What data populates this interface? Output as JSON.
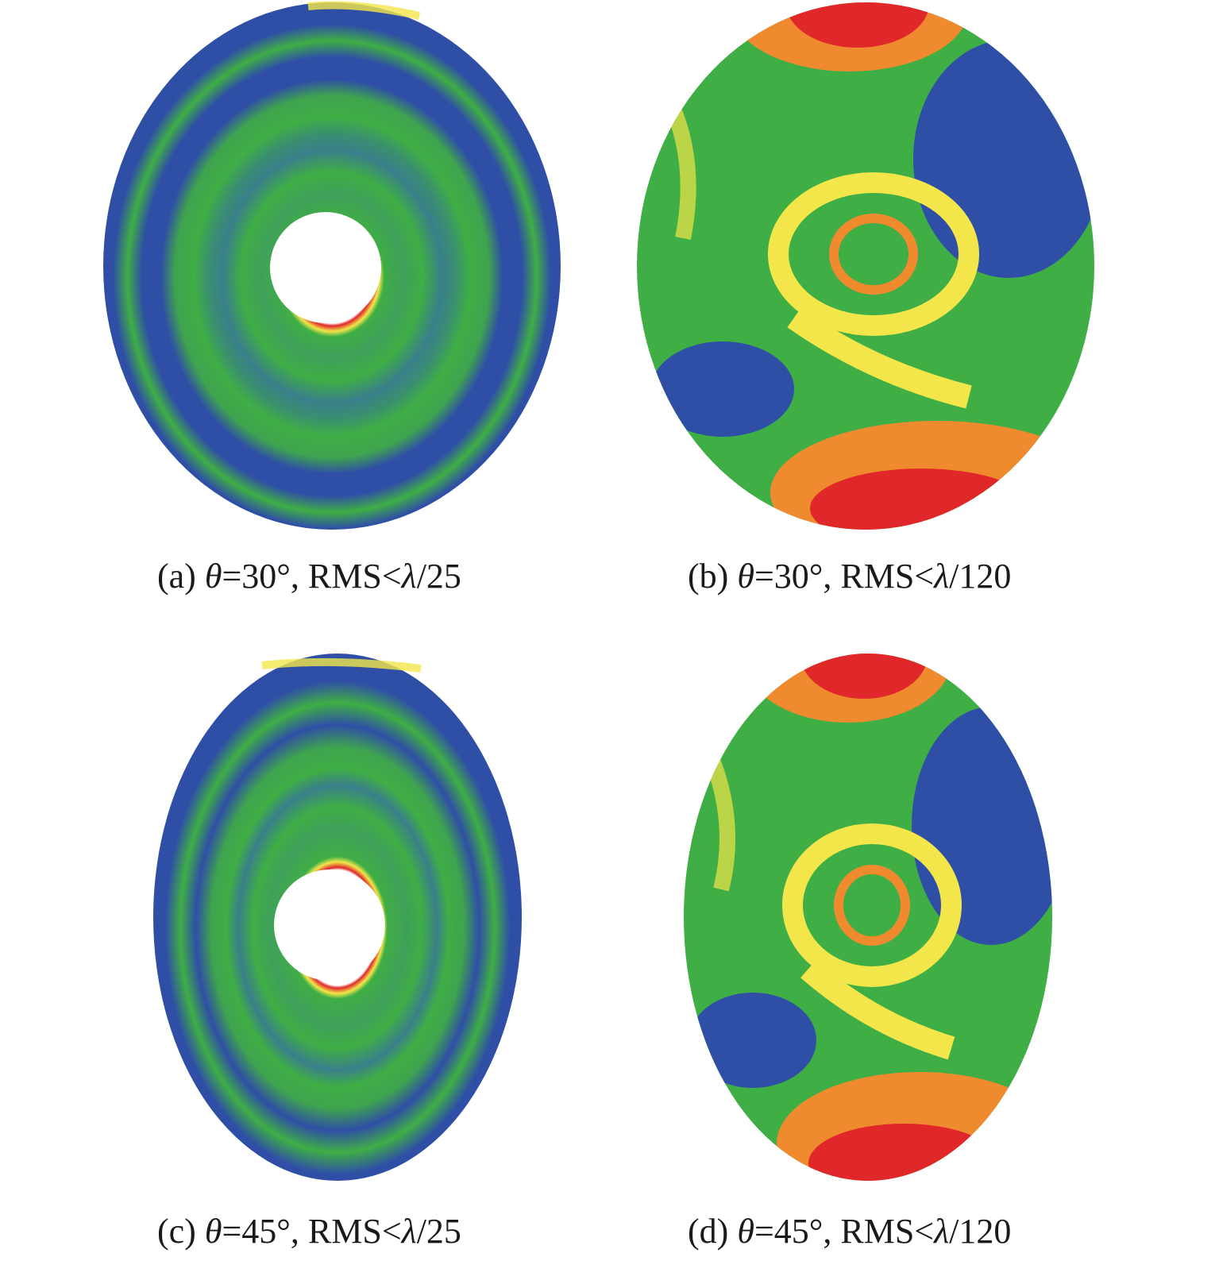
{
  "figure": {
    "colors": {
      "blue": "#2f4fa6",
      "green": "#3fae45",
      "yellow": "#f2e64a",
      "orange": "#f08a2e",
      "red": "#e0282a",
      "white": "#ffffff"
    },
    "panels": [
      {
        "id": "a",
        "label_prefix": "(a) ",
        "theta_symbol": "θ",
        "label_mid": "=30°, RMS<",
        "lambda_symbol": "λ",
        "label_suffix": "/25"
      },
      {
        "id": "b",
        "label_prefix": "(b) ",
        "theta_symbol": "θ",
        "label_mid": "=30°, RMS<",
        "lambda_symbol": "λ",
        "label_suffix": "/120"
      },
      {
        "id": "c",
        "label_prefix": "(c) ",
        "theta_symbol": "θ",
        "label_mid": "=45°, RMS<",
        "lambda_symbol": "λ",
        "label_suffix": "/25"
      },
      {
        "id": "d",
        "label_prefix": "(d) ",
        "theta_symbol": "θ",
        "label_mid": "=45°, RMS<",
        "lambda_symbol": "λ",
        "label_suffix": "/120"
      }
    ]
  }
}
